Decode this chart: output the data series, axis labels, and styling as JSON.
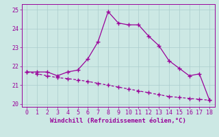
{
  "xlabel": "Windchill (Refroidissement éolien,°C)",
  "background_color": "#cce8e4",
  "line_color": "#990099",
  "grid_color": "#aacccc",
  "x_solid": [
    0,
    1,
    2,
    3,
    4,
    5,
    6,
    7,
    8,
    9,
    10,
    11,
    12,
    13,
    14,
    15,
    16,
    17,
    18
  ],
  "y_solid": [
    21.7,
    21.7,
    21.7,
    21.5,
    21.7,
    21.8,
    22.4,
    23.3,
    24.9,
    24.3,
    24.2,
    24.2,
    23.6,
    23.1,
    22.3,
    21.9,
    21.5,
    21.6,
    20.2
  ],
  "x_dashed": [
    0,
    1,
    2,
    3,
    4,
    5,
    6,
    7,
    8,
    9,
    10,
    11,
    12,
    13,
    14,
    15,
    16,
    17,
    18
  ],
  "y_dashed": [
    21.7,
    21.6,
    21.5,
    21.4,
    21.35,
    21.28,
    21.2,
    21.1,
    21.0,
    20.9,
    20.8,
    20.7,
    20.6,
    20.5,
    20.4,
    20.35,
    20.3,
    20.25,
    20.2
  ],
  "xlim": [
    -0.5,
    18.5
  ],
  "ylim": [
    19.85,
    25.3
  ],
  "yticks": [
    20,
    21,
    22,
    23,
    24,
    25
  ],
  "xticks": [
    0,
    1,
    2,
    3,
    4,
    5,
    6,
    7,
    8,
    9,
    10,
    11,
    12,
    13,
    14,
    15,
    16,
    17,
    18
  ],
  "marker": "+",
  "markersize": 4,
  "linewidth": 0.9,
  "fontsize_label": 6.5,
  "fontsize_tick": 6
}
